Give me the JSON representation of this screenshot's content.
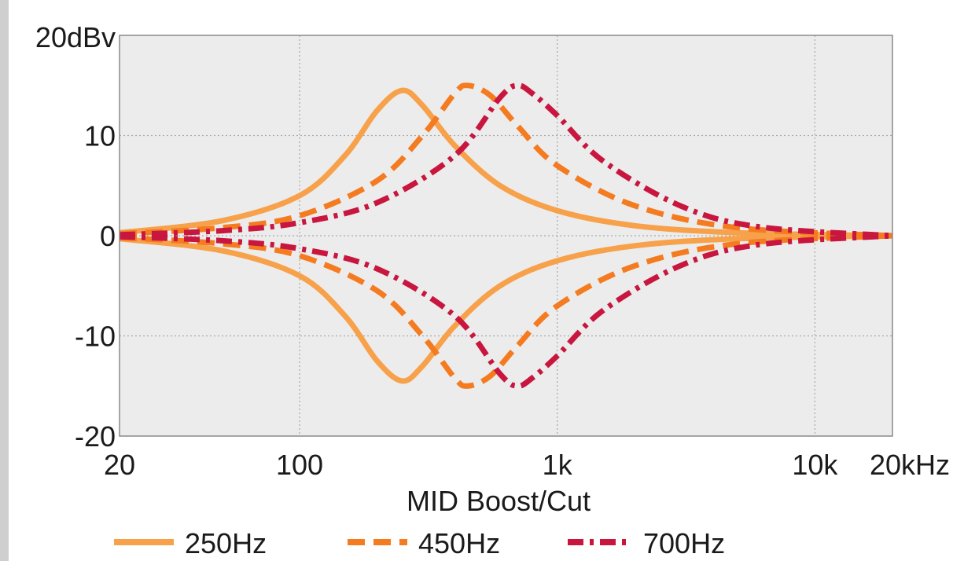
{
  "chart_data": {
    "type": "line",
    "title": "",
    "xlabel": "MID Boost/Cut",
    "ylabel": "",
    "x_scale": "log",
    "xlim": [
      20,
      20000
    ],
    "ylim": [
      -20,
      20
    ],
    "grid": true,
    "legend_position": "bottom",
    "plot_background": "#ececec",
    "x_ticks": [
      {
        "value": 20,
        "label": "20"
      },
      {
        "value": 100,
        "label": "100"
      },
      {
        "value": 1000,
        "label": "1k"
      },
      {
        "value": 10000,
        "label": "10k"
      },
      {
        "value": 20000,
        "label": "20kHz"
      }
    ],
    "y_ticks": [
      {
        "value": 20,
        "label": "20dBv"
      },
      {
        "value": 10,
        "label": "10"
      },
      {
        "value": 0,
        "label": "0"
      },
      {
        "value": -10,
        "label": "-10"
      },
      {
        "value": -20,
        "label": "-20"
      }
    ],
    "series": [
      {
        "name": "250Hz",
        "center_hz": 250,
        "peak_db": 14.5,
        "color": "#f7a14a",
        "dash": "solid",
        "x": [
          20,
          50,
          100,
          150,
          200,
          250,
          300,
          400,
          600,
          1000,
          2000,
          5000,
          20000
        ],
        "boost": [
          0.3,
          1.5,
          4.0,
          8.0,
          12.5,
          14.5,
          13.0,
          9.0,
          5.0,
          2.5,
          1.0,
          0.3,
          0
        ],
        "cut": [
          -0.3,
          -1.5,
          -4.0,
          -8.0,
          -12.5,
          -14.5,
          -13.0,
          -9.0,
          -5.0,
          -2.5,
          -1.0,
          -0.3,
          0
        ]
      },
      {
        "name": "450Hz",
        "center_hz": 450,
        "peak_db": 15,
        "color": "#f47b20",
        "dash": "dashed",
        "x": [
          20,
          50,
          100,
          200,
          300,
          400,
          450,
          550,
          700,
          1000,
          2000,
          5000,
          20000
        ],
        "boost": [
          0.2,
          0.8,
          2.0,
          5.5,
          10.0,
          14.2,
          15.0,
          14.0,
          11.0,
          7.0,
          3.0,
          0.8,
          0
        ],
        "cut": [
          -0.2,
          -0.8,
          -2.0,
          -5.5,
          -10.0,
          -14.2,
          -15.0,
          -14.0,
          -11.0,
          -7.0,
          -3.0,
          -0.8,
          0
        ]
      },
      {
        "name": "700Hz",
        "center_hz": 700,
        "peak_db": 15,
        "color": "#c8163e",
        "dash": "dash-dot",
        "x": [
          20,
          50,
          100,
          200,
          400,
          600,
          700,
          800,
          1000,
          1500,
          3000,
          6000,
          20000
        ],
        "boost": [
          0.1,
          0.5,
          1.3,
          3.3,
          8.0,
          13.8,
          15.0,
          14.2,
          12.0,
          7.5,
          3.0,
          0.9,
          0
        ],
        "cut": [
          -0.1,
          -0.5,
          -1.3,
          -3.3,
          -8.0,
          -13.8,
          -15.0,
          -14.2,
          -12.0,
          -7.5,
          -3.0,
          -0.9,
          0
        ]
      }
    ]
  }
}
